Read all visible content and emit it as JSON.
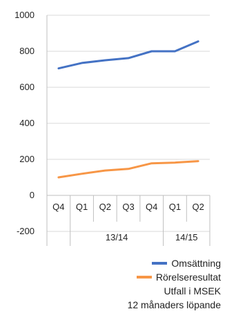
{
  "chart_data": {
    "type": "line",
    "categories": [
      "Q4",
      "Q1",
      "Q2",
      "Q3",
      "Q4",
      "Q1",
      "Q2"
    ],
    "groups": [
      {
        "label": "13/14",
        "start": 1,
        "end": 5
      },
      {
        "label": "14/15",
        "start": 5,
        "end": 7
      }
    ],
    "ylim": [
      -200,
      1000
    ],
    "yticks": [
      1000,
      800,
      600,
      400,
      200,
      0,
      -200
    ],
    "series": [
      {
        "name": "Omsättning",
        "color": "#4472C4",
        "values": [
          705,
          735,
          750,
          762,
          800,
          800,
          855
        ]
      },
      {
        "name": "Rörelseresultat",
        "color": "#F79646",
        "values": [
          100,
          120,
          138,
          147,
          178,
          182,
          190
        ]
      }
    ]
  },
  "legend": {
    "notes": [
      "Utfall i MSEK",
      "12 månaders löpande"
    ]
  }
}
